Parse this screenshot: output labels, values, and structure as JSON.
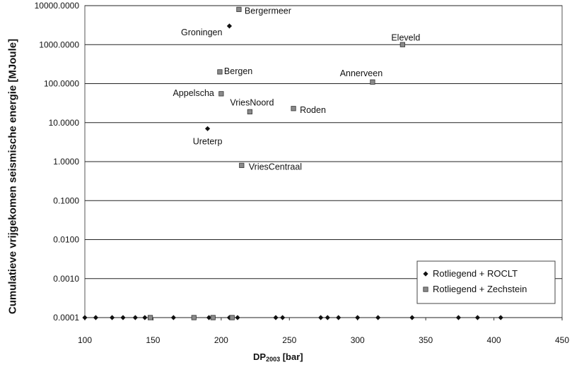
{
  "chart_data": {
    "type": "scatter",
    "title": "",
    "xlabel": "DP",
    "xlabel_sub": "2003",
    "xlabel_unit": " [bar]",
    "ylabel": "Cumulatieve vrijgekomen seismische energie [MJoule]",
    "y_scale": "log",
    "xlim": [
      100,
      450
    ],
    "ylim": [
      0.0001,
      10000
    ],
    "x_ticks": [
      "100",
      "150",
      "200",
      "250",
      "300",
      "350",
      "400",
      "450"
    ],
    "y_ticks": [
      "10000.0000",
      "1000.0000",
      "100.0000",
      "10.0000",
      "1.0000",
      "0.1000",
      "0.0100",
      "0.0010",
      "0.0001"
    ],
    "grid": "horizontal",
    "legend_position": "bottom-right",
    "series": [
      {
        "name": "Rotliegend + ROCLT",
        "marker": "diamond",
        "color": "#000000",
        "points": [
          {
            "x": 206,
            "y": 3000,
            "label": "Groningen"
          },
          {
            "x": 190,
            "y": 7,
            "label": "Ureterp"
          },
          {
            "x": 100,
            "y": 0.0001
          },
          {
            "x": 108,
            "y": 0.0001
          },
          {
            "x": 120,
            "y": 0.0001
          },
          {
            "x": 128,
            "y": 0.0001
          },
          {
            "x": 137,
            "y": 0.0001
          },
          {
            "x": 144,
            "y": 0.0001
          },
          {
            "x": 165,
            "y": 0.0001
          },
          {
            "x": 191,
            "y": 0.0001
          },
          {
            "x": 206,
            "y": 0.0001
          },
          {
            "x": 212,
            "y": 0.0001
          },
          {
            "x": 240,
            "y": 0.0001
          },
          {
            "x": 245,
            "y": 0.0001
          },
          {
            "x": 273,
            "y": 0.0001
          },
          {
            "x": 278,
            "y": 0.0001
          },
          {
            "x": 286,
            "y": 0.0001
          },
          {
            "x": 300,
            "y": 0.0001
          },
          {
            "x": 315,
            "y": 0.0001
          },
          {
            "x": 340,
            "y": 0.0001
          },
          {
            "x": 374,
            "y": 0.0001
          },
          {
            "x": 388,
            "y": 0.0001
          },
          {
            "x": 405,
            "y": 0.0001
          }
        ]
      },
      {
        "name": "Rotliegend + Zechstein",
        "marker": "square",
        "color": "#555555",
        "points": [
          {
            "x": 213,
            "y": 8000,
            "label": "Bergermeer"
          },
          {
            "x": 333,
            "y": 1000,
            "label": "Eleveld"
          },
          {
            "x": 199,
            "y": 200,
            "label": "Bergen"
          },
          {
            "x": 311,
            "y": 110,
            "label": "Annerveen"
          },
          {
            "x": 200,
            "y": 55,
            "label": "Appelscha"
          },
          {
            "x": 221,
            "y": 19,
            "label": "VriesNoord"
          },
          {
            "x": 253,
            "y": 23,
            "label": "Roden"
          },
          {
            "x": 215,
            "y": 0.8,
            "label": "VriesCentraal"
          },
          {
            "x": 148,
            "y": 0.0001
          },
          {
            "x": 180,
            "y": 0.0001
          },
          {
            "x": 194,
            "y": 0.0001
          },
          {
            "x": 208,
            "y": 0.0001
          }
        ]
      }
    ]
  }
}
